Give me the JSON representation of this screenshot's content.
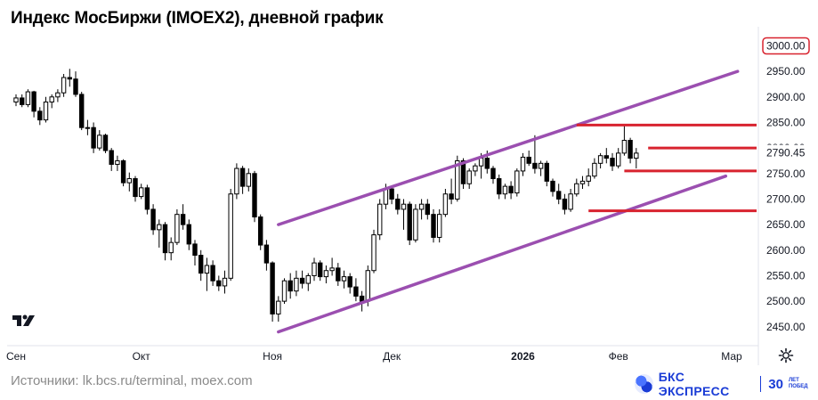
{
  "title": "Индекс МосБиржи (IMOEX2), дневной график",
  "footer": {
    "sources": "Источники: lk.bcs.ru/terminal, moex.com",
    "brand_name": "БКС ЭКСПРЕСС",
    "brand_years": "30",
    "brand_years_sub": "ЛЕТ ПОБЕД"
  },
  "chart_data": {
    "type": "candlestick",
    "y_ticks": [
      2450,
      2500,
      2550,
      2600,
      2650,
      2700,
      2750,
      2800,
      2850,
      2900,
      2950
    ],
    "y_tick_labels": [
      "2450.00",
      "2500.00",
      "2550.00",
      "2600.00",
      "2650.00",
      "2700.00",
      "2750.00",
      "2800.00",
      "2850.00",
      "2900.00",
      "2950.00"
    ],
    "ylim": [
      2413,
      3020
    ],
    "x_ticks": [
      {
        "label": "Сен",
        "bar": 0,
        "bold": false
      },
      {
        "label": "Окт",
        "bar": 21,
        "bold": false
      },
      {
        "label": "Ноя",
        "bar": 43,
        "bold": false
      },
      {
        "label": "Дек",
        "bar": 63,
        "bold": false
      },
      {
        "label": "2026",
        "bar": 85,
        "bold": true
      },
      {
        "label": "Фев",
        "bar": 101,
        "bold": false
      },
      {
        "label": "Мар",
        "bar": 120,
        "bold": false
      }
    ],
    "top_label": "3000.00",
    "last_price_label": "2790.45",
    "candle_colors": {
      "up": "#ffffff",
      "down": "#000000",
      "outline": "#000000"
    },
    "candles": [
      [
        2890,
        2905,
        2882,
        2898
      ],
      [
        2898,
        2905,
        2880,
        2885
      ],
      [
        2885,
        2915,
        2880,
        2910
      ],
      [
        2910,
        2912,
        2860,
        2872
      ],
      [
        2872,
        2880,
        2845,
        2855
      ],
      [
        2855,
        2900,
        2850,
        2890
      ],
      [
        2890,
        2905,
        2878,
        2900
      ],
      [
        2900,
        2915,
        2890,
        2908
      ],
      [
        2908,
        2945,
        2900,
        2938
      ],
      [
        2938,
        2955,
        2920,
        2935
      ],
      [
        2935,
        2950,
        2900,
        2905
      ],
      [
        2905,
        2910,
        2835,
        2840
      ],
      [
        2840,
        2855,
        2825,
        2840
      ],
      [
        2840,
        2850,
        2790,
        2800
      ],
      [
        2800,
        2835,
        2795,
        2825
      ],
      [
        2825,
        2828,
        2790,
        2795
      ],
      [
        2795,
        2800,
        2755,
        2768
      ],
      [
        2768,
        2785,
        2755,
        2775
      ],
      [
        2775,
        2778,
        2725,
        2732
      ],
      [
        2732,
        2752,
        2715,
        2740
      ],
      [
        2740,
        2745,
        2695,
        2705
      ],
      [
        2705,
        2730,
        2700,
        2722
      ],
      [
        2722,
        2728,
        2670,
        2680
      ],
      [
        2680,
        2690,
        2630,
        2640
      ],
      [
        2640,
        2660,
        2605,
        2650
      ],
      [
        2650,
        2655,
        2580,
        2595
      ],
      [
        2595,
        2625,
        2580,
        2615
      ],
      [
        2615,
        2680,
        2610,
        2670
      ],
      [
        2670,
        2690,
        2640,
        2650
      ],
      [
        2650,
        2660,
        2600,
        2612
      ],
      [
        2612,
        2620,
        2570,
        2590
      ],
      [
        2590,
        2600,
        2540,
        2555
      ],
      [
        2555,
        2585,
        2520,
        2570
      ],
      [
        2570,
        2580,
        2530,
        2540
      ],
      [
        2540,
        2550,
        2520,
        2530
      ],
      [
        2530,
        2560,
        2515,
        2545
      ],
      [
        2545,
        2720,
        2540,
        2710
      ],
      [
        2710,
        2770,
        2700,
        2760
      ],
      [
        2760,
        2765,
        2710,
        2725
      ],
      [
        2725,
        2760,
        2715,
        2750
      ],
      [
        2750,
        2755,
        2655,
        2665
      ],
      [
        2665,
        2670,
        2600,
        2610
      ],
      [
        2610,
        2620,
        2560,
        2575
      ],
      [
        2575,
        2578,
        2460,
        2475
      ],
      [
        2475,
        2510,
        2460,
        2500
      ],
      [
        2500,
        2545,
        2495,
        2540
      ],
      [
        2540,
        2555,
        2505,
        2520
      ],
      [
        2520,
        2560,
        2510,
        2545
      ],
      [
        2545,
        2560,
        2525,
        2535
      ],
      [
        2535,
        2555,
        2520,
        2550
      ],
      [
        2550,
        2585,
        2540,
        2575
      ],
      [
        2575,
        2580,
        2540,
        2548
      ],
      [
        2548,
        2570,
        2535,
        2560
      ],
      [
        2560,
        2585,
        2550,
        2565
      ],
      [
        2565,
        2575,
        2530,
        2540
      ],
      [
        2540,
        2560,
        2525,
        2548
      ],
      [
        2548,
        2555,
        2515,
        2528
      ],
      [
        2528,
        2545,
        2500,
        2510
      ],
      [
        2510,
        2520,
        2480,
        2500
      ],
      [
        2500,
        2570,
        2490,
        2560
      ],
      [
        2560,
        2640,
        2555,
        2630
      ],
      [
        2630,
        2700,
        2620,
        2690
      ],
      [
        2690,
        2730,
        2680,
        2720
      ],
      [
        2720,
        2725,
        2690,
        2700
      ],
      [
        2700,
        2710,
        2670,
        2680
      ],
      [
        2680,
        2700,
        2640,
        2690
      ],
      [
        2690,
        2695,
        2610,
        2620
      ],
      [
        2620,
        2690,
        2615,
        2680
      ],
      [
        2680,
        2700,
        2660,
        2690
      ],
      [
        2690,
        2700,
        2660,
        2670
      ],
      [
        2670,
        2680,
        2615,
        2625
      ],
      [
        2625,
        2680,
        2615,
        2670
      ],
      [
        2670,
        2720,
        2665,
        2710
      ],
      [
        2710,
        2740,
        2690,
        2700
      ],
      [
        2700,
        2785,
        2695,
        2775
      ],
      [
        2775,
        2780,
        2720,
        2730
      ],
      [
        2730,
        2760,
        2720,
        2755
      ],
      [
        2755,
        2770,
        2745,
        2765
      ],
      [
        2765,
        2790,
        2740,
        2780
      ],
      [
        2780,
        2795,
        2750,
        2760
      ],
      [
        2760,
        2765,
        2730,
        2740
      ],
      [
        2740,
        2748,
        2700,
        2710
      ],
      [
        2710,
        2730,
        2700,
        2725
      ],
      [
        2725,
        2735,
        2700,
        2712
      ],
      [
        2712,
        2760,
        2705,
        2755
      ],
      [
        2755,
        2790,
        2745,
        2782
      ],
      [
        2782,
        2795,
        2765,
        2770
      ],
      [
        2770,
        2825,
        2750,
        2760
      ],
      [
        2760,
        2775,
        2745,
        2770
      ],
      [
        2770,
        2775,
        2725,
        2735
      ],
      [
        2735,
        2740,
        2705,
        2715
      ],
      [
        2715,
        2730,
        2690,
        2700
      ],
      [
        2700,
        2710,
        2670,
        2680
      ],
      [
        2680,
        2720,
        2675,
        2710
      ],
      [
        2710,
        2740,
        2705,
        2730
      ],
      [
        2730,
        2745,
        2720,
        2735
      ],
      [
        2735,
        2760,
        2725,
        2745
      ],
      [
        2745,
        2780,
        2740,
        2770
      ],
      [
        2770,
        2790,
        2760,
        2785
      ],
      [
        2785,
        2800,
        2770,
        2780
      ],
      [
        2780,
        2790,
        2755,
        2765
      ],
      [
        2765,
        2800,
        2760,
        2790
      ],
      [
        2790,
        2845,
        2785,
        2815
      ],
      [
        2815,
        2820,
        2770,
        2780
      ],
      [
        2780,
        2800,
        2760,
        2790
      ]
    ],
    "channel_lines": [
      {
        "color": "#9b4fb0",
        "points": [
          [
            44,
            2650
          ],
          [
            121,
            2950
          ]
        ]
      },
      {
        "color": "#9b4fb0",
        "points": [
          [
            44,
            2440
          ],
          [
            119,
            2745
          ]
        ]
      }
    ],
    "level_lines": [
      {
        "color": "#d8232f",
        "value": 2845,
        "from_bar": 94
      },
      {
        "color": "#d8232f",
        "value": 2800,
        "from_bar": 106
      },
      {
        "color": "#d8232f",
        "value": 2755,
        "from_bar": 102
      },
      {
        "color": "#d8232f",
        "value": 2677,
        "from_bar": 96
      }
    ]
  }
}
